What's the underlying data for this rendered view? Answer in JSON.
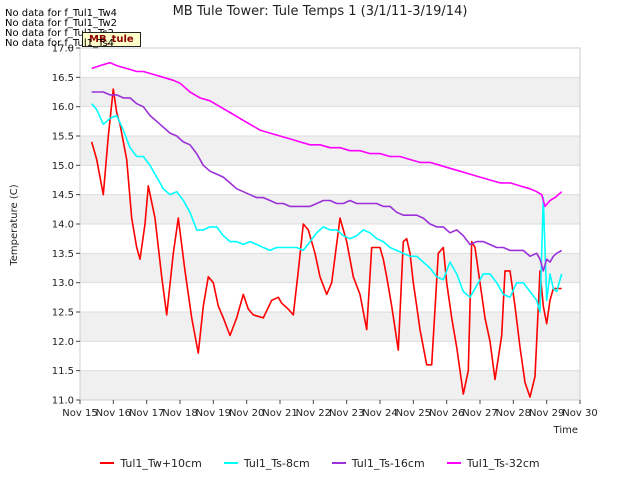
{
  "nodata": [
    "No data for f_Tul1_Tw4",
    "No data for f_Tul1_Tw2",
    "No data for f_Tul1_Ts2",
    "No data for f_Tul1_Ts4"
  ],
  "tooltip_text": "MB_tule",
  "chart_data": {
    "type": "line",
    "title": "MB Tule Tower: Tule Temps 1 (3/1/11-3/19/14)",
    "xlabel": "Time",
    "ylabel": "Temperature (C)",
    "xlim": [
      15,
      30
    ],
    "ylim": [
      11.0,
      17.0
    ],
    "xtick_values": [
      15,
      16,
      17,
      18,
      19,
      20,
      21,
      22,
      23,
      24,
      25,
      26,
      27,
      28,
      29,
      30
    ],
    "xtick_labels": [
      "Nov 15",
      "Nov 16",
      "Nov 17",
      "Nov 18",
      "Nov 19",
      "Nov 20",
      "Nov 21",
      "Nov 22",
      "Nov 23",
      "Nov 24",
      "Nov 25",
      "Nov 26",
      "Nov 27",
      "Nov 28",
      "Nov 29",
      "Nov 30"
    ],
    "ytick_values": [
      11.0,
      11.5,
      12.0,
      12.5,
      13.0,
      13.5,
      14.0,
      14.5,
      15.0,
      15.5,
      16.0,
      16.5,
      17.0
    ],
    "ytick_labels": [
      "11.0",
      "11.5",
      "12.0",
      "12.5",
      "13.0",
      "13.5",
      "14.0",
      "14.5",
      "15.0",
      "15.5",
      "16.0",
      "16.5",
      "17.0"
    ],
    "series": [
      {
        "name": "Tul1_Tw+10cm",
        "color": "#ff0000",
        "x": [
          15.35,
          15.5,
          15.7,
          15.85,
          16.0,
          16.1,
          16.2,
          16.4,
          16.55,
          16.7,
          16.8,
          16.95,
          17.05,
          17.25,
          17.45,
          17.6,
          17.8,
          17.95,
          18.15,
          18.35,
          18.55,
          18.7,
          18.85,
          19.0,
          19.15,
          19.3,
          19.5,
          19.7,
          19.9,
          20.05,
          20.2,
          20.5,
          20.75,
          20.95,
          21.05,
          21.25,
          21.4,
          21.55,
          21.7,
          21.85,
          22.05,
          22.2,
          22.4,
          22.55,
          22.8,
          23.0,
          23.1,
          23.2,
          23.4,
          23.6,
          23.75,
          24.0,
          24.1,
          24.2,
          24.35,
          24.55,
          24.7,
          24.8,
          24.9,
          25.0,
          25.1,
          25.2,
          25.4,
          25.55,
          25.75,
          25.9,
          26.0,
          26.15,
          26.3,
          26.5,
          26.65,
          26.75,
          26.85,
          27.0,
          27.15,
          27.3,
          27.45,
          27.65,
          27.75,
          27.9,
          28.05,
          28.2,
          28.35,
          28.5,
          28.65,
          28.8,
          28.9,
          29.0,
          29.1,
          29.2,
          29.3,
          29.45
        ],
        "values": [
          15.4,
          15.1,
          14.5,
          15.5,
          16.3,
          15.9,
          15.7,
          15.1,
          14.1,
          13.6,
          13.4,
          14.0,
          14.65,
          14.1,
          13.1,
          12.45,
          13.5,
          14.1,
          13.2,
          12.4,
          11.8,
          12.6,
          13.1,
          13.0,
          12.6,
          12.4,
          12.1,
          12.4,
          12.8,
          12.55,
          12.45,
          12.4,
          12.7,
          12.75,
          12.65,
          12.55,
          12.45,
          13.2,
          14.0,
          13.9,
          13.5,
          13.1,
          12.8,
          13.0,
          14.1,
          13.7,
          13.4,
          13.1,
          12.8,
          12.2,
          13.6,
          13.6,
          13.4,
          13.1,
          12.6,
          11.85,
          13.7,
          13.75,
          13.5,
          13.0,
          12.6,
          12.2,
          11.6,
          11.6,
          13.5,
          13.6,
          13.0,
          12.4,
          11.9,
          11.1,
          11.5,
          13.7,
          13.6,
          13.0,
          12.4,
          12.0,
          11.35,
          12.1,
          13.2,
          13.2,
          12.6,
          11.9,
          11.3,
          11.05,
          11.4,
          13.2,
          12.6,
          12.3,
          12.7,
          12.9,
          12.9,
          12.9
        ]
      },
      {
        "name": "Tul1_Ts-8cm",
        "color": "#00ffff",
        "x": [
          15.35,
          15.5,
          15.7,
          15.9,
          16.1,
          16.3,
          16.5,
          16.7,
          16.9,
          17.1,
          17.3,
          17.5,
          17.7,
          17.9,
          18.1,
          18.3,
          18.5,
          18.7,
          18.9,
          19.1,
          19.3,
          19.5,
          19.7,
          19.9,
          20.1,
          20.3,
          20.5,
          20.7,
          20.9,
          21.1,
          21.3,
          21.5,
          21.7,
          21.9,
          22.1,
          22.3,
          22.5,
          22.7,
          22.9,
          23.1,
          23.3,
          23.5,
          23.7,
          23.9,
          24.1,
          24.3,
          24.5,
          24.7,
          24.9,
          25.1,
          25.3,
          25.5,
          25.7,
          25.9,
          26.1,
          26.3,
          26.5,
          26.7,
          26.9,
          27.1,
          27.3,
          27.5,
          27.7,
          27.9,
          28.1,
          28.3,
          28.5,
          28.7,
          28.8,
          28.9,
          29.0,
          29.1,
          29.2,
          29.3,
          29.45
        ],
        "values": [
          16.05,
          15.95,
          15.7,
          15.8,
          15.85,
          15.6,
          15.3,
          15.15,
          15.15,
          15.0,
          14.8,
          14.6,
          14.5,
          14.55,
          14.4,
          14.2,
          13.9,
          13.9,
          13.95,
          13.95,
          13.8,
          13.7,
          13.7,
          13.65,
          13.7,
          13.65,
          13.6,
          13.55,
          13.6,
          13.6,
          13.6,
          13.6,
          13.55,
          13.7,
          13.85,
          13.95,
          13.9,
          13.9,
          13.8,
          13.75,
          13.8,
          13.9,
          13.85,
          13.75,
          13.7,
          13.6,
          13.55,
          13.5,
          13.45,
          13.45,
          13.35,
          13.25,
          13.1,
          13.05,
          13.35,
          13.15,
          12.85,
          12.75,
          12.95,
          13.15,
          13.15,
          13.0,
          12.8,
          12.75,
          13.0,
          13.0,
          12.85,
          12.7,
          12.5,
          14.45,
          12.7,
          13.15,
          12.9,
          12.85,
          13.15
        ]
      },
      {
        "name": "Tul1_Ts-16cm",
        "color": "#9b30d9",
        "x": [
          15.35,
          15.5,
          15.7,
          15.9,
          16.1,
          16.3,
          16.5,
          16.7,
          16.9,
          17.1,
          17.3,
          17.5,
          17.7,
          17.9,
          18.1,
          18.3,
          18.5,
          18.7,
          18.9,
          19.1,
          19.3,
          19.5,
          19.7,
          19.9,
          20.1,
          20.3,
          20.5,
          20.7,
          20.9,
          21.1,
          21.3,
          21.5,
          21.7,
          21.9,
          22.1,
          22.3,
          22.5,
          22.7,
          22.9,
          23.1,
          23.3,
          23.5,
          23.7,
          23.9,
          24.1,
          24.3,
          24.5,
          24.7,
          24.9,
          25.1,
          25.3,
          25.5,
          25.7,
          25.9,
          26.1,
          26.3,
          26.5,
          26.7,
          26.9,
          27.1,
          27.3,
          27.5,
          27.7,
          27.9,
          28.1,
          28.3,
          28.5,
          28.7,
          28.8,
          28.9,
          29.0,
          29.1,
          29.2,
          29.3,
          29.45
        ],
        "values": [
          16.25,
          16.25,
          16.25,
          16.2,
          16.2,
          16.15,
          16.15,
          16.05,
          16.0,
          15.85,
          15.75,
          15.65,
          15.55,
          15.5,
          15.4,
          15.35,
          15.2,
          15.0,
          14.9,
          14.85,
          14.8,
          14.7,
          14.6,
          14.55,
          14.5,
          14.45,
          14.45,
          14.4,
          14.35,
          14.35,
          14.3,
          14.3,
          14.3,
          14.3,
          14.35,
          14.4,
          14.4,
          14.35,
          14.35,
          14.4,
          14.35,
          14.35,
          14.35,
          14.35,
          14.3,
          14.3,
          14.2,
          14.15,
          14.15,
          14.15,
          14.1,
          14.0,
          13.95,
          13.95,
          13.85,
          13.9,
          13.8,
          13.65,
          13.7,
          13.7,
          13.65,
          13.6,
          13.6,
          13.55,
          13.55,
          13.55,
          13.45,
          13.5,
          13.4,
          13.2,
          13.4,
          13.35,
          13.45,
          13.5,
          13.55
        ]
      },
      {
        "name": "Tul1_Ts-32cm",
        "color": "#ff00ff",
        "x": [
          15.35,
          15.6,
          15.9,
          16.1,
          16.4,
          16.7,
          16.9,
          17.2,
          17.5,
          17.8,
          18.0,
          18.3,
          18.6,
          18.9,
          19.2,
          19.5,
          19.8,
          20.1,
          20.4,
          20.7,
          21.0,
          21.3,
          21.6,
          21.9,
          22.2,
          22.5,
          22.8,
          23.1,
          23.4,
          23.7,
          24.0,
          24.3,
          24.6,
          24.9,
          25.2,
          25.5,
          25.8,
          26.1,
          26.4,
          26.7,
          27.0,
          27.3,
          27.6,
          27.9,
          28.2,
          28.5,
          28.7,
          28.85,
          28.95,
          29.1,
          29.25,
          29.45
        ],
        "values": [
          16.65,
          16.7,
          16.75,
          16.7,
          16.65,
          16.6,
          16.6,
          16.55,
          16.5,
          16.45,
          16.4,
          16.25,
          16.15,
          16.1,
          16.0,
          15.9,
          15.8,
          15.7,
          15.6,
          15.55,
          15.5,
          15.45,
          15.4,
          15.35,
          15.35,
          15.3,
          15.3,
          15.25,
          15.25,
          15.2,
          15.2,
          15.15,
          15.15,
          15.1,
          15.05,
          15.05,
          15.0,
          14.95,
          14.9,
          14.85,
          14.8,
          14.75,
          14.7,
          14.7,
          14.65,
          14.6,
          14.55,
          14.5,
          14.3,
          14.4,
          14.45,
          14.55
        ]
      }
    ]
  }
}
